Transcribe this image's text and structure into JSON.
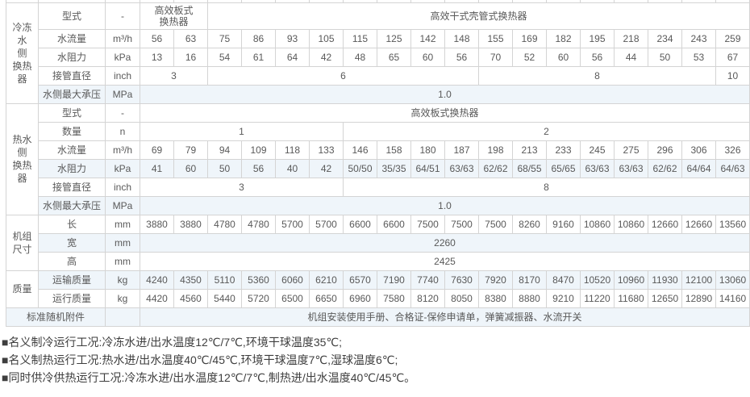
{
  "table": {
    "groups": [
      {
        "name": "chilled-water-side-heat-exchanger",
        "label": "冷冻\n水\n侧\n换热\n器",
        "rowspan": 5
      },
      {
        "name": "hot-water-side-heat-exchanger",
        "label": "热水\n侧\n换热\n器",
        "rowspan": 6
      },
      {
        "name": "unit-dimensions",
        "label": "机组\n尺寸",
        "rowspan": 3
      },
      {
        "name": "weight",
        "label": "质量",
        "rowspan": 2
      }
    ],
    "rows": [
      {
        "group": 0,
        "label": "型式",
        "unit": "-",
        "shade": false,
        "cells": [
          [
            "高效板式\n换热器",
            2
          ],
          [
            "高效干式壳管式换热器",
            16
          ]
        ]
      },
      {
        "label": "水流量",
        "unit": "m³/h",
        "shade": false,
        "cells": [
          "56",
          "63",
          "75",
          "86",
          "93",
          "105",
          "115",
          "125",
          "142",
          "148",
          "155",
          "169",
          "182",
          "195",
          "218",
          "234",
          "243",
          "259"
        ]
      },
      {
        "label": "水阻力",
        "unit": "kPa",
        "shade": false,
        "cells": [
          "13",
          "16",
          "54",
          "61",
          "64",
          "42",
          "48",
          "65",
          "60",
          "56",
          "70",
          "52",
          "60",
          "56",
          "44",
          "50",
          "53",
          "67"
        ]
      },
      {
        "label": "接管直径",
        "unit": "inch",
        "shade": false,
        "cells": [
          [
            "3",
            2
          ],
          [
            "6",
            8
          ],
          [
            "8",
            7
          ],
          [
            "10",
            1
          ]
        ]
      },
      {
        "label": "水侧最大承压",
        "unit": "MPa",
        "shade": true,
        "cells": [
          [
            "1.0",
            18
          ]
        ]
      },
      {
        "group": 1,
        "label": "型式",
        "unit": "-",
        "shade": false,
        "cells": [
          [
            "高效板式换热器",
            18
          ]
        ]
      },
      {
        "label": "数量",
        "unit": "n",
        "shade": false,
        "cells": [
          [
            "1",
            6
          ],
          [
            "2",
            12
          ]
        ]
      },
      {
        "label": "水流量",
        "unit": "m³/h",
        "shade": false,
        "cells": [
          "69",
          "79",
          "94",
          "109",
          "118",
          "133",
          "146",
          "158",
          "180",
          "187",
          "198",
          "213",
          "233",
          "245",
          "275",
          "296",
          "306",
          "326"
        ]
      },
      {
        "label": "水阻力",
        "unit": "kPa",
        "shade": true,
        "cells": [
          "41",
          "60",
          "50",
          "56",
          "40",
          "42",
          "50/50",
          "35/35",
          "64/51",
          "63/63",
          "62/62",
          "68/55",
          "65/65",
          "63/63",
          "63/63",
          "62/62",
          "64/64",
          "64/63"
        ]
      },
      {
        "label": "接管直径",
        "unit": "inch",
        "shade": false,
        "cells": [
          [
            "3",
            6
          ],
          [
            "8",
            12
          ]
        ]
      },
      {
        "label": "水侧最大承压",
        "unit": "MPa",
        "shade": true,
        "cells": [
          [
            "1.0",
            18
          ]
        ]
      },
      {
        "group": 2,
        "label": "长",
        "unit": "mm",
        "shade": false,
        "cells": [
          "3880",
          "3880",
          "4780",
          "4780",
          "5700",
          "5700",
          "6600",
          "6600",
          "7500",
          "7500",
          "7500",
          "8260",
          "9160",
          "10860",
          "10860",
          "12660",
          "12660",
          "13560"
        ]
      },
      {
        "label": "宽",
        "unit": "mm",
        "shade": true,
        "cells": [
          [
            "2260",
            18
          ]
        ]
      },
      {
        "label": "高",
        "unit": "mm",
        "shade": false,
        "cells": [
          [
            "2425",
            18
          ]
        ]
      },
      {
        "group": 3,
        "label": "运输质量",
        "unit": "kg",
        "shade": true,
        "cells": [
          "4240",
          "4350",
          "5110",
          "5360",
          "6060",
          "6210",
          "6570",
          "7190",
          "7740",
          "7630",
          "7920",
          "8170",
          "8470",
          "10520",
          "10960",
          "11930",
          "12100",
          "13060"
        ]
      },
      {
        "label": "运行质量",
        "unit": "kg",
        "shade": false,
        "cells": [
          "4420",
          "4560",
          "5440",
          "5720",
          "6500",
          "6650",
          "6960",
          "7580",
          "8120",
          "8050",
          "8380",
          "8880",
          "9210",
          "11220",
          "11680",
          "12650",
          "12890",
          "14160"
        ]
      },
      {
        "label": "标准随机附件",
        "label_colspan": 2,
        "unit": "",
        "shade": true,
        "cells": [
          [
            "机组安装使用手册、合格证-保修申请单，弹簧减振器、水流开关",
            18
          ]
        ]
      }
    ]
  },
  "notes": [
    "■名义制冷运行工况:冷冻水进/出水温度12℃/7℃,环境干球温度35℃;",
    "■名义制热运行工况:热水进/出水温度40℃/45℃,环境干球温度7℃,湿球温度6℃;",
    "■同时供冷供热运行工况:冷冻水进/出水温度12℃/7℃,制热进/出水温度40℃/45℃。"
  ],
  "colors": {
    "border": "#d4d4d4",
    "shade_row": "#eff5fa",
    "cell_text": "#595959",
    "note_text": "#3e3e3e"
  }
}
